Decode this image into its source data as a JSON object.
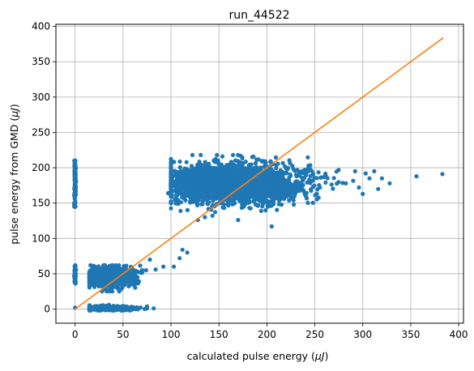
{
  "chart_data": {
    "type": "scatter",
    "title": "run_44522",
    "xlabel_prefix": "calculated pulse energy (",
    "xlabel_unit": "μJ",
    "xlabel_suffix": ")",
    "ylabel_prefix": "pulse energy from GMD (",
    "ylabel_unit": "μJ",
    "ylabel_suffix": ")",
    "xlim": [
      -20,
      405
    ],
    "ylim": [
      -20,
      403
    ],
    "xticks": [
      0,
      50,
      100,
      150,
      200,
      250,
      300,
      350,
      400
    ],
    "yticks": [
      0,
      50,
      100,
      150,
      200,
      250,
      300,
      350,
      400
    ],
    "grid": true,
    "scatter_color": "#1f77b4",
    "line_color": "#ff7f0e",
    "clusters": [
      {
        "x_range": [
          100,
          290
        ],
        "y_range": [
          130,
          218
        ],
        "count": 2600,
        "center": [
          162,
          178
        ],
        "spread": [
          36,
          14
        ]
      },
      {
        "x_range": [
          15,
          70
        ],
        "y_range": [
          25,
          62
        ],
        "count": 900,
        "center": [
          38,
          45
        ],
        "spread": [
          12,
          7
        ]
      },
      {
        "x_range": [
          15,
          75
        ],
        "y_range": [
          -2,
          6
        ],
        "count": 450,
        "center": [
          38,
          1
        ],
        "spread": [
          12,
          1.5
        ]
      },
      {
        "x_range": [
          -1,
          1
        ],
        "y_range": [
          145,
          210
        ],
        "count": 120,
        "center": [
          0,
          180
        ],
        "spread": [
          0.4,
          18
        ]
      },
      {
        "x_range": [
          -1,
          1
        ],
        "y_range": [
          35,
          66
        ],
        "count": 60,
        "center": [
          0,
          50
        ],
        "spread": [
          0.4,
          7
        ]
      }
    ],
    "outliers": [
      {
        "x": 0,
        "y": 2
      },
      {
        "x": 383,
        "y": 191
      },
      {
        "x": 356,
        "y": 188
      },
      {
        "x": 328,
        "y": 178
      },
      {
        "x": 320,
        "y": 185
      },
      {
        "x": 316,
        "y": 170
      },
      {
        "x": 312,
        "y": 195
      },
      {
        "x": 307,
        "y": 185
      },
      {
        "x": 303,
        "y": 192
      },
      {
        "x": 300,
        "y": 163
      },
      {
        "x": 296,
        "y": 172
      },
      {
        "x": 292,
        "y": 195
      },
      {
        "x": 112,
        "y": 84
      },
      {
        "x": 117,
        "y": 80
      },
      {
        "x": 109,
        "y": 72
      },
      {
        "x": 103,
        "y": 60
      },
      {
        "x": 92,
        "y": 60
      },
      {
        "x": 84,
        "y": 56
      },
      {
        "x": 78,
        "y": 70
      },
      {
        "x": 74,
        "y": 55
      },
      {
        "x": 205,
        "y": 117
      },
      {
        "x": 170,
        "y": 126
      },
      {
        "x": 128,
        "y": 126
      },
      {
        "x": 101,
        "y": 161
      },
      {
        "x": 97,
        "y": 164
      },
      {
        "x": 82,
        "y": 1
      },
      {
        "x": 75,
        "y": 1
      }
    ],
    "fit_line": {
      "x": [
        0,
        384
      ],
      "y": [
        0,
        384
      ]
    }
  }
}
